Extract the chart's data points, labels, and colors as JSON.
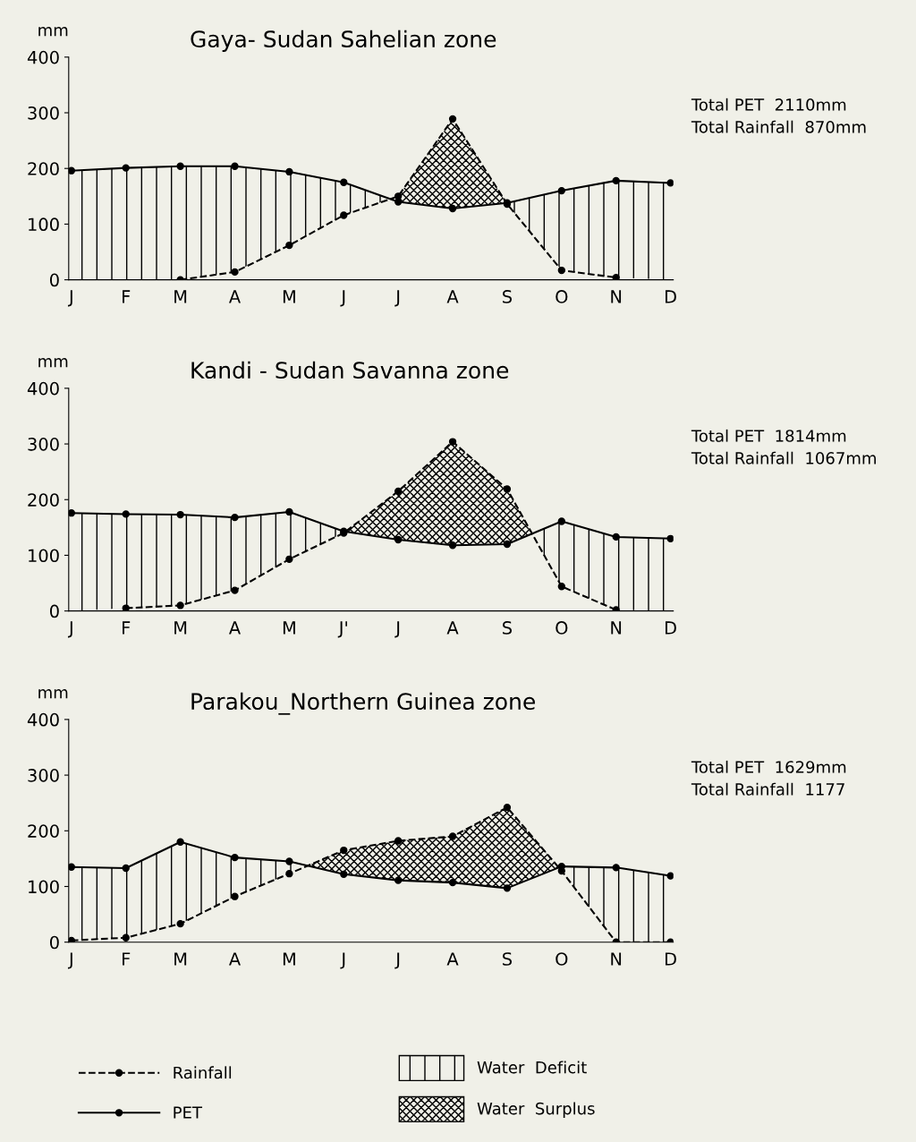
{
  "chart_data": [
    {
      "type": "line",
      "title": "Gaya- Sudan Sahelian zone",
      "ylabel": "mm",
      "categories": [
        "J",
        "F",
        "M",
        "A",
        "M",
        "J",
        "J",
        "A",
        "S",
        "O",
        "N",
        "D"
      ],
      "ylim": [
        0,
        400
      ],
      "yticks": [
        0,
        100,
        200,
        300,
        400
      ],
      "grid": false,
      "series": [
        {
          "color": "#000000",
          "line_style": "dashed",
          "marker": "circle",
          "values": [
            null,
            null,
            0,
            14,
            62,
            116,
            150,
            289,
            136,
            17,
            4,
            null
          ]
        },
        {
          "color": "#000000",
          "line_style": "solid",
          "marker": "circle",
          "values": [
            196,
            201,
            204,
            204,
            194,
            175,
            140,
            128,
            138,
            160,
            178,
            174
          ]
        }
      ],
      "annotations": [
        "Total PET  2110mm",
        "Total Rainfall  870mm"
      ]
    },
    {
      "type": "line",
      "title": "Kandi - Sudan Savanna zone",
      "ylabel": "mm",
      "categories": [
        "J",
        "F",
        "M",
        "A",
        "M",
        "J'",
        "J",
        "A",
        "S",
        "O",
        "N",
        "D"
      ],
      "ylim": [
        0,
        400
      ],
      "yticks": [
        0,
        100,
        200,
        300,
        400
      ],
      "grid": false,
      "series": [
        {
          "color": "#000000",
          "line_style": "dashed",
          "marker": "circle",
          "values": [
            null,
            5,
            10,
            37,
            93,
            140,
            215,
            304,
            219,
            44,
            2,
            null
          ]
        },
        {
          "color": "#000000",
          "line_style": "solid",
          "marker": "circle",
          "values": [
            176,
            174,
            173,
            168,
            178,
            143,
            128,
            118,
            120,
            161,
            133,
            130
          ]
        }
      ],
      "annotations": [
        "Total PET  1814mm",
        "Total Rainfall  1067mm"
      ]
    },
    {
      "type": "line",
      "title": "Parakou_Northern Guinea zone",
      "ylabel": "mm",
      "categories": [
        "J",
        "F",
        "M",
        "A",
        "M",
        "J",
        "J",
        "A",
        "S",
        "O",
        "N",
        "D"
      ],
      "ylim": [
        0,
        400
      ],
      "yticks": [
        0,
        100,
        200,
        300,
        400
      ],
      "grid": false,
      "legend": "bottom",
      "series": [
        {
          "name": "Rainfall",
          "color": "#000000",
          "line_style": "dashed",
          "marker": "circle",
          "values": [
            3,
            8,
            33,
            82,
            123,
            165,
            182,
            190,
            242,
            128,
            0,
            0
          ]
        },
        {
          "name": "PET",
          "color": "#000000",
          "line_style": "solid",
          "marker": "circle",
          "values": [
            135,
            133,
            180,
            152,
            145,
            122,
            111,
            107,
            97,
            136,
            134,
            119
          ]
        }
      ],
      "annotations": [
        "Total PET  1629mm",
        "Total Rainfall  1177",
        "Water  Deficit",
        "Water  Surplus"
      ]
    }
  ]
}
